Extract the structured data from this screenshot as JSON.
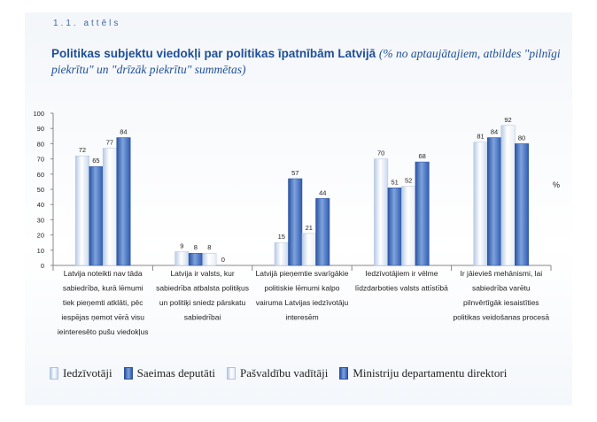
{
  "figure_label": "1.1. attēls",
  "title": {
    "main": "Politikas subjektu viedokļi par politikas īpatnībām Latvijā",
    "sub": "(% no aptaujātajiem, atbildes \"pilnīgi piekrītu\" un \"drīzāk piekrītu\" summētas)"
  },
  "colors": {
    "iedzivotaji": "#c9d9ee",
    "saeimas": "#3f6cbc",
    "pasvaldibu": "#e8edf4",
    "ministriju": "#3f6cbc",
    "axis": "#888888",
    "text": "#222222"
  },
  "chart_data": {
    "type": "bar",
    "title": "Politikas subjektu viedokļi par politikas īpatnībām Latvijā",
    "ylabel": "%",
    "xlabel": "",
    "ylim": [
      0,
      100
    ],
    "yticks": [
      0,
      10,
      20,
      30,
      40,
      50,
      60,
      70,
      80,
      90,
      100
    ],
    "grid": false,
    "legend": "bottom",
    "categories": [
      "Latvija noteikti nav tāda sabiedrība, kurā lēmumi tiek pieņemti atklāti, pēc iespējas ņemot vērā visu ieinteresēto pušu viedokļus",
      "Latvija ir valsts, kur sabiedrība atbalsta politiķus un politiķi sniedz pārskatu sabiedrībai",
      "Latvijā pieņemtie svarīgākie politiskie lēmumi kalpo vairuma Latvijas iedzīvotāju interesēm",
      "Iedzīvotājiem ir vēlme līdzdarboties valsts attīstībā",
      "Ir jāievieš mehānismi, lai sabiedrība varētu pilnvērtīgāk iesaistīties politikas veidošanas procesā"
    ],
    "category_lines": [
      [
        "Latvija noteikti nav tāda",
        "sabiedrība, kurā lēmumi",
        "tiek pieņemti atklāti, pēc",
        "iespējas ņemot vērā visu",
        "ieinteresēto pušu viedokļus"
      ],
      [
        "Latvija ir valsts, kur",
        "sabiedrība atbalsta politiķus",
        "un politiķi sniedz pārskatu",
        "sabiedrībai"
      ],
      [
        "Latvijā pieņemtie svarīgākie",
        "politiskie lēmumi kalpo",
        "vairuma Latvijas iedzīvotāju",
        "interesēm"
      ],
      [
        "Iedzīvotājiem ir vēlme",
        "līdzdarboties valsts attīstībā"
      ],
      [
        "Ir jāievieš mehānismi, lai",
        "sabiedrība varētu",
        "pilnvērtīgāk iesaistīties",
        "politikas veidošanas procesā"
      ]
    ],
    "series": [
      {
        "name": "Iedzīvotāji",
        "key": "iedzivotaji",
        "values": [
          72,
          9,
          15,
          70,
          81
        ]
      },
      {
        "name": "Saeimas deputāti",
        "key": "saeimas",
        "values": [
          65,
          8,
          57,
          51,
          84
        ]
      },
      {
        "name": "Pašvaldību vadītāji",
        "key": "pasvaldibu",
        "values": [
          77,
          8,
          21,
          52,
          92
        ]
      },
      {
        "name": "Ministriju departamentu direktori",
        "key": "ministriju",
        "values": [
          84,
          0,
          44,
          68,
          80
        ]
      }
    ]
  }
}
